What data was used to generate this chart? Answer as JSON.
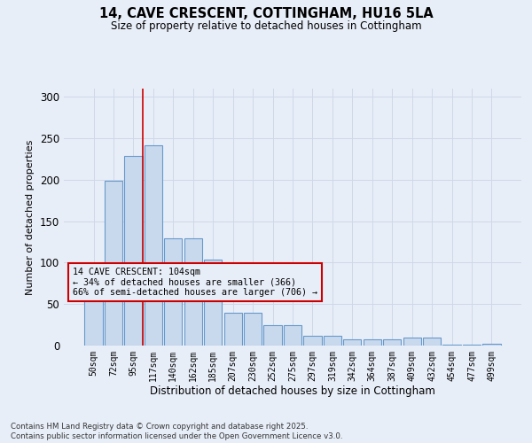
{
  "title_line1": "14, CAVE CRESCENT, COTTINGHAM, HU16 5LA",
  "title_line2": "Size of property relative to detached houses in Cottingham",
  "xlabel": "Distribution of detached houses by size in Cottingham",
  "ylabel": "Number of detached properties",
  "bar_labels": [
    "50sqm",
    "72sqm",
    "95sqm",
    "117sqm",
    "140sqm",
    "162sqm",
    "185sqm",
    "207sqm",
    "230sqm",
    "252sqm",
    "275sqm",
    "297sqm",
    "319sqm",
    "342sqm",
    "364sqm",
    "387sqm",
    "409sqm",
    "432sqm",
    "454sqm",
    "477sqm",
    "499sqm"
  ],
  "bar_values": [
    70,
    199,
    229,
    242,
    129,
    129,
    104,
    40,
    40,
    25,
    25,
    12,
    12,
    8,
    8,
    8,
    10,
    10,
    1,
    1,
    2
  ],
  "bar_color": "#c9d9ed",
  "bar_edge_color": "#6699cc",
  "grid_color": "#d0d8e8",
  "background_color": "#e8eef8",
  "annotation_text": "14 CAVE CRESCENT: 104sqm\n← 34% of detached houses are smaller (366)\n66% of semi-detached houses are larger (706) →",
  "annotation_box_edge": "#cc0000",
  "vline_color": "#cc0000",
  "vline_x": 2.45,
  "ylim": [
    0,
    310
  ],
  "yticks": [
    0,
    50,
    100,
    150,
    200,
    250,
    300
  ],
  "footnote": "Contains HM Land Registry data © Crown copyright and database right 2025.\nContains public sector information licensed under the Open Government Licence v3.0."
}
